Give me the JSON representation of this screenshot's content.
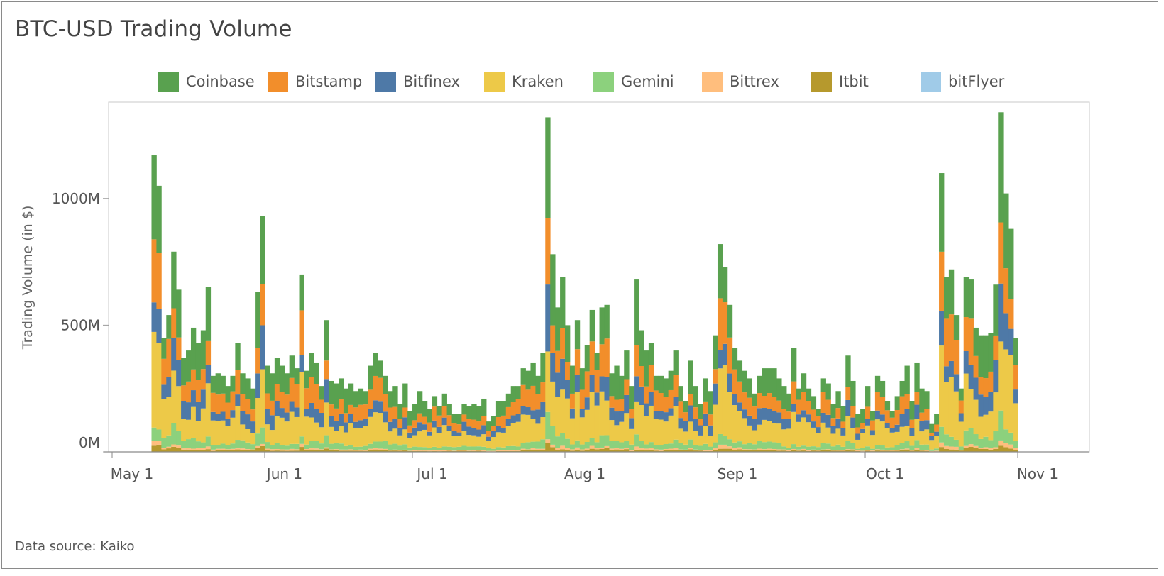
{
  "title": "BTC-USD Trading Volume",
  "source_note": "Data source: Kaiko",
  "chart_data": {
    "type": "bar",
    "stacked": true,
    "title": "BTC-USD Trading Volume",
    "ylabel": "Trading Volume (in $)",
    "xlabel": "",
    "ylim": [
      0,
      1380
    ],
    "y_unit": "M",
    "y_ticks": [
      {
        "value": 0,
        "label": "0M"
      },
      {
        "value": 500,
        "label": "500M"
      },
      {
        "value": 1000,
        "label": "1000M"
      }
    ],
    "x_ticks": [
      {
        "date": "2018-05-01",
        "label": "May 1"
      },
      {
        "date": "2018-06-01",
        "label": "Jun 1"
      },
      {
        "date": "2018-07-01",
        "label": "Jul 1"
      },
      {
        "date": "2018-08-01",
        "label": "Aug 1"
      },
      {
        "date": "2018-09-01",
        "label": "Sep 1"
      },
      {
        "date": "2018-10-01",
        "label": "Oct 1"
      },
      {
        "date": "2018-11-01",
        "label": "Nov 1"
      }
    ],
    "x_start": "2018-05-09",
    "x_end": "2018-11-08",
    "legend_position": "top",
    "grid": false,
    "series_order": [
      "Itbit",
      "Bittrex",
      "Gemini",
      "Kraken",
      "Bitfinex",
      "Bitstamp",
      "Coinbase",
      "bitFlyer"
    ],
    "series": [
      {
        "name": "Coinbase",
        "color": "#59a14f"
      },
      {
        "name": "Bitstamp",
        "color": "#f28e2b"
      },
      {
        "name": "Bitfinex",
        "color": "#4e79a7"
      },
      {
        "name": "Kraken",
        "color": "#edc948"
      },
      {
        "name": "Gemini",
        "color": "#8cd17d"
      },
      {
        "name": "Bittrex",
        "color": "#ffbe7d"
      },
      {
        "name": "Itbit",
        "color": "#b6992d"
      },
      {
        "name": "bitFlyer",
        "color": "#a0cbe8"
      }
    ],
    "totals_note": "daily stacked totals in $M, estimated from axis",
    "totals": [
      1170,
      1050,
      450,
      540,
      790,
      640,
      370,
      400,
      490,
      430,
      480,
      650,
      300,
      310,
      300,
      260,
      300,
      430,
      310,
      290,
      250,
      630,
      930,
      340,
      310,
      370,
      340,
      310,
      380,
      330,
      700,
      320,
      390,
      350,
      260,
      520,
      280,
      270,
      290,
      250,
      270,
      240,
      250,
      240,
      340,
      390,
      360,
      300,
      240,
      260,
      190,
      270,
      160,
      190,
      240,
      200,
      170,
      220,
      180,
      230,
      190,
      150,
      150,
      190,
      180,
      190,
      180,
      210,
      120,
      140,
      200,
      200,
      230,
      260,
      260,
      330,
      320,
      350,
      300,
      390,
      1320,
      780,
      570,
      690,
      500,
      340,
      520,
      330,
      420,
      560,
      390,
      570,
      580,
      310,
      340,
      300,
      400,
      260,
      680,
      480,
      400,
      430,
      300,
      300,
      290,
      320,
      400,
      260,
      200,
      360,
      260,
      190,
      290,
      240,
      460,
      820,
      730,
      580,
      410,
      360,
      320,
      290,
      230,
      300,
      330,
      330,
      330,
      290,
      260,
      230,
      410,
      250,
      310,
      250,
      220,
      170,
      290,
      270,
      190,
      240,
      180,
      380,
      280,
      150,
      170,
      260,
      160,
      300,
      280,
      200,
      160,
      220,
      280,
      340,
      200,
      350,
      250,
      240,
      110,
      150,
      1100,
      690,
      720,
      540,
      250,
      690,
      680,
      490,
      460,
      460,
      470,
      660,
      1340,
      1020,
      880,
      450
    ],
    "composition_note": "fraction of each day's total by exchange (approx.)",
    "composition": {
      "Itbit": 0.02,
      "Bittrex": 0.015,
      "Gemini": 0.07,
      "Kraken": 0.28,
      "Bitfinex": 0.14,
      "Bitstamp": 0.2,
      "Coinbase": 0.275,
      "bitFlyer": 0
    }
  }
}
